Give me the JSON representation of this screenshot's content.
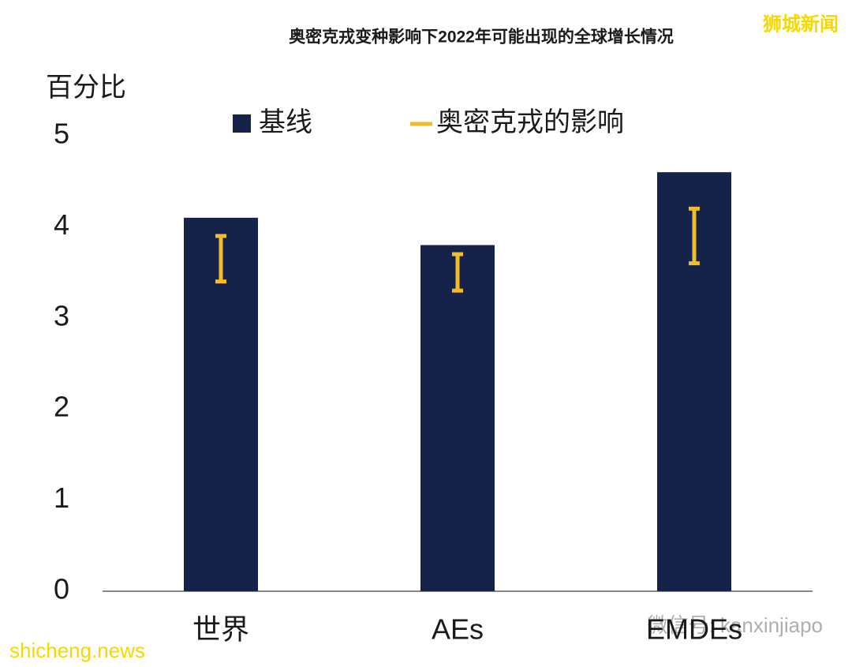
{
  "chart_data": {
    "type": "bar",
    "title": "奥密克戎变种影响下2022年可能出现的全球增长情况",
    "y_label": "百分比",
    "categories": [
      "世界",
      "AEs",
      "EMDEs"
    ],
    "series": [
      {
        "name": "基线",
        "color": "#15234a",
        "values": [
          4.1,
          3.8,
          4.6
        ]
      },
      {
        "name": "奥密克戎的影响",
        "color": "#f2bd2c",
        "low": [
          3.4,
          3.3,
          3.6
        ],
        "high": [
          3.9,
          3.7,
          4.2
        ]
      }
    ],
    "ylim": [
      0,
      5
    ],
    "yticks": [
      0,
      1,
      2,
      3,
      4,
      5
    ],
    "grid": false
  },
  "watermarks": {
    "top_right": "狮城新闻",
    "bottom_left": "shicheng.news",
    "bottom_right": "微信号: kanxinjiapo"
  }
}
